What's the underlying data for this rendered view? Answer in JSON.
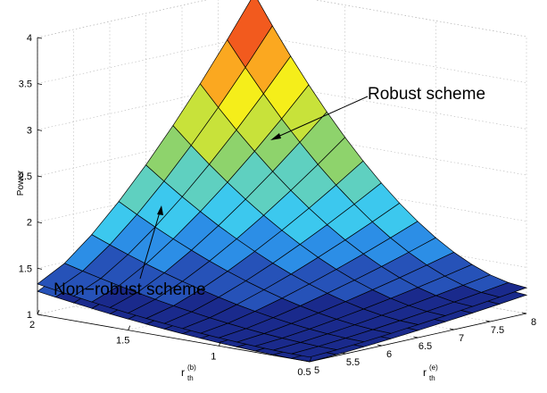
{
  "chart_data": {
    "type": "surface3d",
    "zlabel": "Power",
    "xlabel_main": "r",
    "xlabel_sub": "th",
    "xlabel_sup": "(b)",
    "ylabel_main": "r",
    "ylabel_sub": "th",
    "ylabel_sup": "(e)",
    "x_axis": {
      "name": "r_th^(b)",
      "range": [
        0.5,
        2
      ],
      "ticks": [
        0.5,
        1,
        1.5,
        2
      ]
    },
    "y_axis": {
      "name": "r_th^(e)",
      "range": [
        5,
        8
      ],
      "ticks": [
        5,
        5.5,
        6,
        6.5,
        7,
        7.5,
        8
      ]
    },
    "z_axis": {
      "name": "Power",
      "range": [
        1,
        4
      ],
      "ticks": [
        1,
        1.5,
        2,
        2.5,
        3,
        3.5,
        4
      ]
    },
    "x_grid": [
      2.0,
      1.9,
      1.8,
      1.7,
      1.6,
      1.5,
      1.4,
      1.3,
      1.2,
      1.1,
      1.0,
      0.9,
      0.8,
      0.7,
      0.6,
      0.5
    ],
    "y_grid": [
      5.0,
      5.375,
      5.75,
      6.125,
      6.5,
      6.875,
      7.25,
      7.625,
      8.0
    ],
    "series": [
      {
        "name": "Robust scheme",
        "z_at_corners": {
          "x2_y5": 1.33,
          "x0.5_y5": 1.05,
          "x2_y8": 3.95,
          "x0.5_y8": 1.28
        }
      },
      {
        "name": "Non-robust scheme",
        "z_at_corners": {
          "x2_y5": 1.25,
          "x0.5_y5": 1.0,
          "x2_y8": 3.62,
          "x0.5_y8": 1.2
        }
      }
    ],
    "annotations": [
      {
        "text": "Robust scheme",
        "target_series": "Robust scheme"
      },
      {
        "text": "Non−robust scheme",
        "target_series": "Non-robust scheme"
      }
    ],
    "colormap": [
      "#1a2a8c",
      "#2652b8",
      "#2c8ee6",
      "#3cc8ee",
      "#5fd0c0",
      "#8ed36c",
      "#c8e23a",
      "#f5ee1a",
      "#fba820",
      "#f25a1e",
      "#e0281a"
    ],
    "grid": true
  }
}
